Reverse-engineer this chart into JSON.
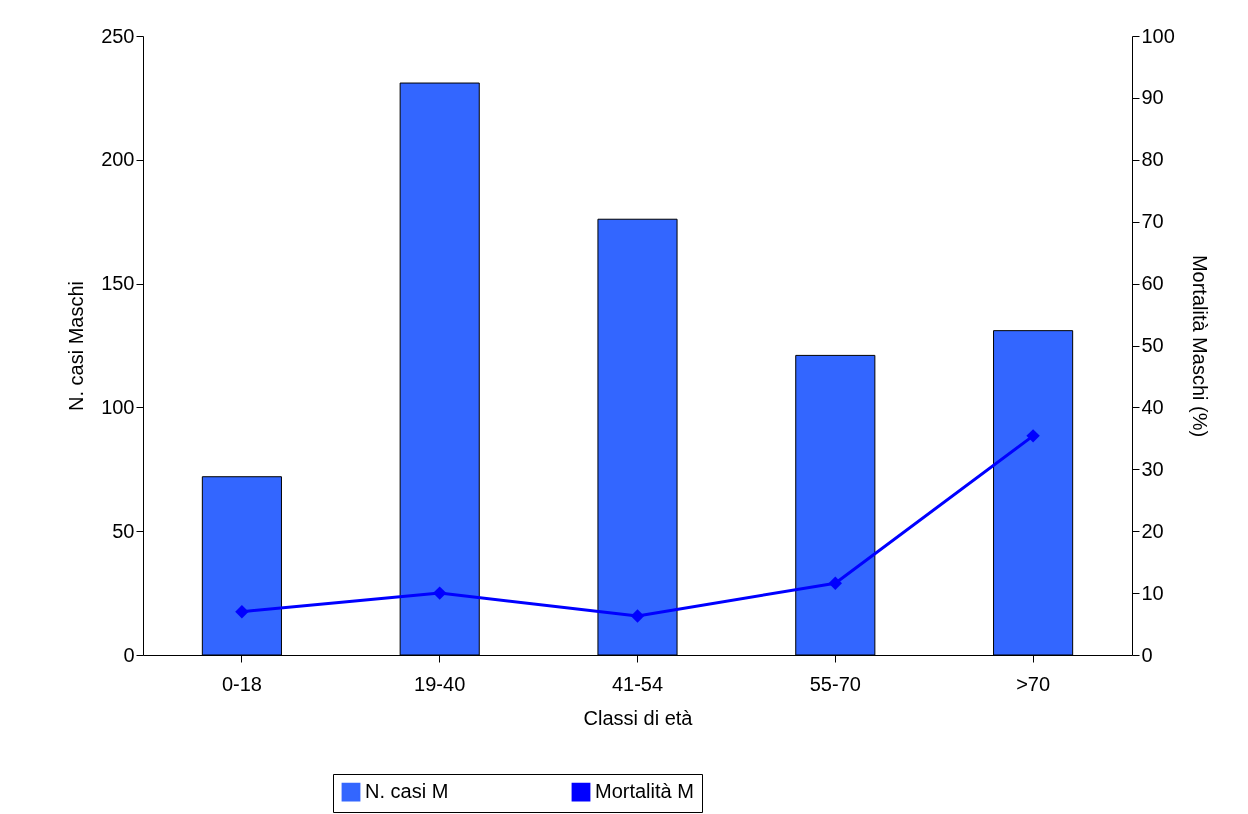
{
  "chart_data": {
    "type": "bar",
    "xlabel": "Classi di età",
    "ylabel": "N. casi Maschi",
    "y2label": "Mortalità Maschi (%)",
    "categories": [
      "0-18",
      "19-40",
      "41-54",
      "55-70",
      ">70"
    ],
    "series": [
      {
        "name": "N. casi M",
        "color": "#3366ff",
        "values": [
          72,
          231,
          176,
          121,
          131
        ]
      },
      {
        "name": "Mortalità M",
        "type": "line",
        "axis": "y2",
        "color": "#0000ff",
        "values": [
          7,
          10,
          6.3,
          11.6,
          35.4
        ]
      }
    ],
    "ylim": [
      0,
      250
    ],
    "yticks": [
      0,
      50,
      100,
      150,
      200,
      250
    ],
    "y2lim": [
      0,
      100
    ],
    "y2ticks": [
      0,
      10,
      20,
      30,
      40,
      50,
      60,
      70,
      80,
      90,
      100
    ],
    "grid": false,
    "legend": "bottom",
    "marker": "diamond",
    "line_style": "solid"
  }
}
